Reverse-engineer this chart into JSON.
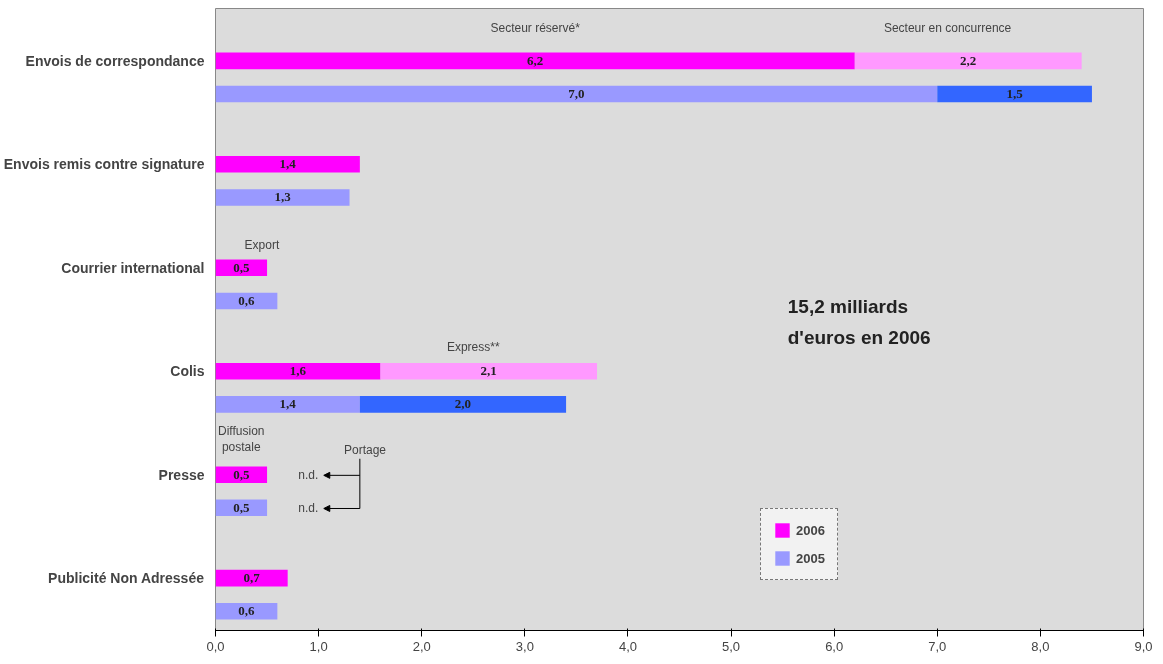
{
  "chart_data": {
    "type": "bar",
    "orientation": "horizontal",
    "stacked": true,
    "categories": [
      "Envois de correspondance",
      null,
      "Envois remis contre signature",
      null,
      "Courrier international",
      null,
      "Colis",
      null,
      "Presse",
      null,
      "Publicité Non Adressée",
      null
    ],
    "series": [
      {
        "name": "2006",
        "color": "#ff00ff",
        "values": [
          6.2,
          null,
          1.4,
          null,
          0.5,
          null,
          1.6,
          null,
          0.5,
          null,
          0.7,
          null
        ],
        "value_labels": [
          "6,2",
          null,
          "1,4",
          null,
          "0,5",
          null,
          "1,6",
          null,
          "0,5",
          null,
          "0,7",
          null
        ]
      },
      {
        "color": "#ff99ff",
        "values": [
          2.2,
          null,
          null,
          null,
          null,
          null,
          2.1,
          null,
          null,
          null,
          null,
          null
        ],
        "value_labels": [
          "2,2",
          null,
          null,
          null,
          null,
          null,
          "2,1",
          null,
          null,
          null,
          null,
          null
        ]
      },
      {
        "name": "2005",
        "color": "#9999ff",
        "values": [
          null,
          7.0,
          null,
          1.3,
          null,
          0.6,
          null,
          1.4,
          null,
          0.5,
          null,
          0.6
        ],
        "value_labels": [
          null,
          "7,0",
          null,
          "1,3",
          null,
          "0,6",
          null,
          "1,4",
          null,
          "0,5",
          null,
          "0,6"
        ]
      },
      {
        "color": "#3366ff",
        "values": [
          null,
          1.5,
          null,
          null,
          null,
          null,
          null,
          2.0,
          null,
          null,
          null,
          null
        ],
        "value_labels": [
          null,
          "1,5",
          null,
          null,
          null,
          null,
          null,
          "2,0",
          null,
          null,
          null,
          null
        ]
      }
    ],
    "xlim": [
      0,
      9
    ],
    "xticks": [
      {
        "value": 0,
        "label": "0,0"
      },
      {
        "value": 1,
        "label": "1,0"
      },
      {
        "value": 2,
        "label": "2,0"
      },
      {
        "value": 3,
        "label": "3,0"
      },
      {
        "value": 4,
        "label": "4,0"
      },
      {
        "value": 5,
        "label": "5,0"
      },
      {
        "value": 6,
        "label": "6,0"
      },
      {
        "value": 7,
        "label": "7,0"
      },
      {
        "value": 8,
        "label": "8,0"
      },
      {
        "value": 9,
        "label": "9,0"
      }
    ],
    "grid": false,
    "legend": "bottom right",
    "annotations": [
      "Secteur réservé*",
      "Secteur en concurrence",
      "Export",
      "Express**",
      "Diffusion postale",
      "Portage",
      "n.d.",
      "n.d.",
      "15,2 milliards d'euros en 2006"
    ]
  }
}
